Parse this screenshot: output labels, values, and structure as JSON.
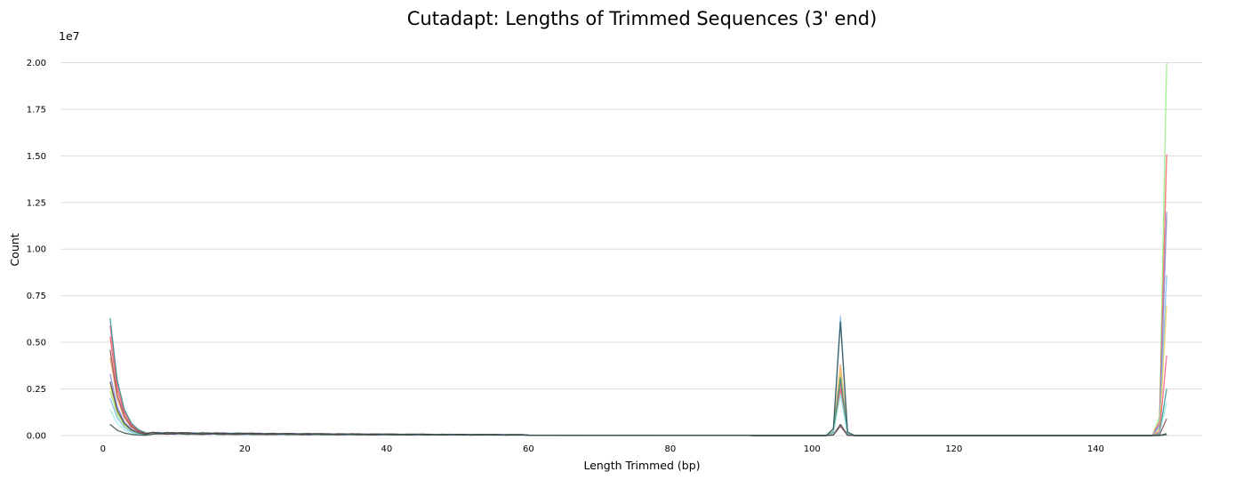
{
  "chart_data": {
    "type": "line",
    "title": "Cutadapt: Lengths of Trimmed Sequences (3' end)",
    "xlabel": "Length Trimmed (bp)",
    "ylabel": "Count",
    "y_scale_label": "1e7",
    "xlim": [
      -6,
      155
    ],
    "ylim": [
      0,
      20500000
    ],
    "x_ticks": [
      0,
      20,
      40,
      60,
      80,
      100,
      120,
      140
    ],
    "y_ticks": [
      0,
      2500000,
      5000000,
      7500000,
      10000000,
      12500000,
      15000000,
      17500000,
      20000000
    ],
    "y_tick_labels": [
      "0.00",
      "0.25",
      "0.50",
      "0.75",
      "1.00",
      "1.25",
      "1.50",
      "1.75",
      "2.00"
    ],
    "grid": "horizontal",
    "legend": "none",
    "series": [
      {
        "color": "#90ed7d",
        "peak1": 2400000,
        "peak104": 2600000,
        "peak150": 20000000
      },
      {
        "color": "#f45b5b",
        "peak1": 5300000,
        "peak104": 2900000,
        "peak150": 15100000
      },
      {
        "color": "#f7a35c",
        "peak1": 4200000,
        "peak104": 3800000,
        "peak150": 11800000
      },
      {
        "color": "#8085e9",
        "peak1": 3300000,
        "peak104": 3200000,
        "peak150": 12000000
      },
      {
        "color": "#7cb5ec",
        "peak1": 2000000,
        "peak104": 6400000,
        "peak150": 8600000
      },
      {
        "color": "#e4d354",
        "peak1": 2700000,
        "peak104": 3400000,
        "peak150": 7000000
      },
      {
        "color": "#f15c80",
        "peak1": 5900000,
        "peak104": 2500000,
        "peak150": 4300000
      },
      {
        "color": "#2b908f",
        "peak1": 6300000,
        "peak104": 3100000,
        "peak150": 2500000
      },
      {
        "color": "#91e8e1",
        "peak1": 1400000,
        "peak104": 2200000,
        "peak150": 1800000
      },
      {
        "color": "#8d4653",
        "peak1": 4600000,
        "peak104": 500000,
        "peak150": 900000
      },
      {
        "color": "#434348",
        "peak1": 2900000,
        "peak104": 600000,
        "peak150": 100000
      },
      {
        "color": "#2f4f4f",
        "peak1": 600000,
        "peak104": 6100000,
        "peak150": 50000
      }
    ]
  }
}
